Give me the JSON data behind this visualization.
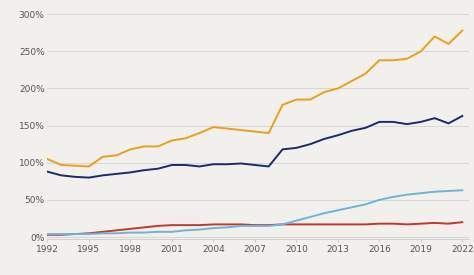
{
  "years": [
    1992,
    1993,
    1994,
    1995,
    1996,
    1997,
    1998,
    1999,
    2000,
    2001,
    2002,
    2003,
    2004,
    2005,
    2006,
    2007,
    2008,
    2009,
    2010,
    2011,
    2012,
    2013,
    2014,
    2015,
    2016,
    2017,
    2018,
    2019,
    2020,
    2021,
    2022
  ],
  "yellow": [
    105,
    97,
    96,
    95,
    108,
    110,
    118,
    122,
    122,
    130,
    133,
    140,
    148,
    146,
    144,
    142,
    140,
    178,
    185,
    185,
    195,
    200,
    210,
    220,
    238,
    238,
    240,
    250,
    270,
    260,
    278
  ],
  "navy": [
    88,
    83,
    81,
    80,
    83,
    85,
    87,
    90,
    92,
    97,
    97,
    95,
    98,
    98,
    99,
    97,
    95,
    118,
    120,
    125,
    132,
    137,
    143,
    147,
    155,
    155,
    152,
    155,
    160,
    153,
    163
  ],
  "lightblue": [
    4,
    4,
    4,
    4,
    5,
    5,
    6,
    6,
    7,
    7,
    9,
    10,
    12,
    13,
    15,
    15,
    15,
    17,
    22,
    27,
    32,
    36,
    40,
    44,
    50,
    54,
    57,
    59,
    61,
    62,
    63
  ],
  "red": [
    3,
    3,
    4,
    5,
    7,
    9,
    11,
    13,
    15,
    16,
    16,
    16,
    17,
    17,
    17,
    16,
    16,
    17,
    17,
    17,
    17,
    17,
    17,
    17,
    18,
    18,
    17,
    18,
    19,
    18,
    20
  ],
  "yellow_color": "#E8A020",
  "navy_color": "#1B2A6B",
  "lightblue_color": "#6EB4D8",
  "red_color": "#C0392B",
  "bg_color": "#F2F0EC",
  "grid_color": "#CCCCCC",
  "yticks": [
    0,
    50,
    100,
    150,
    200,
    250,
    300
  ],
  "xticks": [
    1992,
    1995,
    1998,
    2001,
    2004,
    2007,
    2010,
    2013,
    2016,
    2019,
    2022
  ],
  "ylim": [
    -3,
    308
  ],
  "xlim": [
    1992,
    2022.5
  ]
}
